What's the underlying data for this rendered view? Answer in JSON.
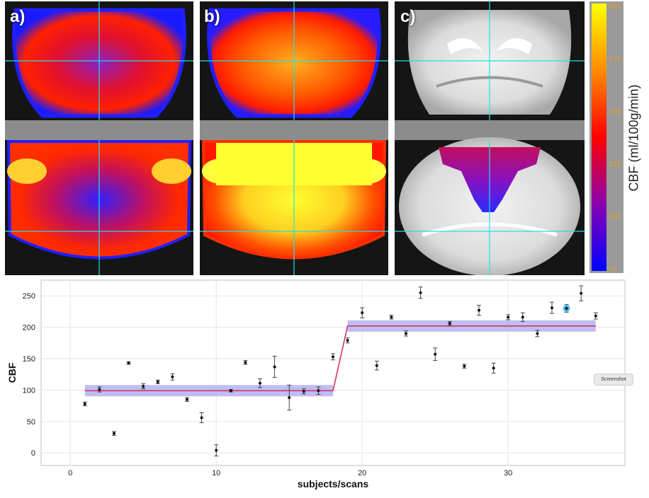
{
  "panels": [
    {
      "label": "a)",
      "mode": "perfusion_low"
    },
    {
      "label": "b)",
      "mode": "perfusion_high"
    },
    {
      "label": "c)",
      "mode": "anatomy_roi"
    }
  ],
  "colorbar": {
    "label": "CBF (ml/100g/min)",
    "ticks": [
      "75",
      "100",
      "125",
      "150",
      "175",
      "200"
    ],
    "colors": [
      "#0000ff",
      "#8a00b0",
      "#ff0000",
      "#ff8c00",
      "#ffff00"
    ]
  },
  "colors": {
    "fit_line": "#d6336c",
    "fit_band": "#b3b3f0",
    "crosshair": "#22e0e0",
    "highlight": "#38b8f0",
    "grid": "#e6e6e6"
  },
  "screenshot_button": "Screenshot",
  "chart_data": {
    "type": "scatter",
    "xlabel": "subjects/scans",
    "ylabel": "CBF",
    "xlim": [
      -2,
      38
    ],
    "ylim": [
      -20,
      275
    ],
    "xticks": [
      "0",
      "10",
      "20",
      "30"
    ],
    "yticks": [
      "0",
      "50",
      "100",
      "150",
      "200",
      "250"
    ],
    "grid": true,
    "points": [
      {
        "x": 1,
        "y": 78,
        "err": 3
      },
      {
        "x": 2,
        "y": 101,
        "err": 4
      },
      {
        "x": 3,
        "y": 31,
        "err": 3
      },
      {
        "x": 4,
        "y": 143,
        "err": 2
      },
      {
        "x": 5,
        "y": 106,
        "err": 4
      },
      {
        "x": 6,
        "y": 113,
        "err": 3
      },
      {
        "x": 7,
        "y": 121,
        "err": 5
      },
      {
        "x": 8,
        "y": 85,
        "err": 3
      },
      {
        "x": 9,
        "y": 56,
        "err": 8
      },
      {
        "x": 10,
        "y": 4,
        "err": 9
      },
      {
        "x": 11,
        "y": 99,
        "err": 2
      },
      {
        "x": 12,
        "y": 144,
        "err": 3
      },
      {
        "x": 13,
        "y": 111,
        "err": 7
      },
      {
        "x": 14,
        "y": 137,
        "err": 17
      },
      {
        "x": 15,
        "y": 88,
        "err": 20
      },
      {
        "x": 16,
        "y": 98,
        "err": 4
      },
      {
        "x": 17,
        "y": 99,
        "err": 6
      },
      {
        "x": 18,
        "y": 153,
        "err": 5
      },
      {
        "x": 19,
        "y": 179,
        "err": 4
      },
      {
        "x": 20,
        "y": 223,
        "err": 8
      },
      {
        "x": 21,
        "y": 139,
        "err": 7
      },
      {
        "x": 22,
        "y": 216,
        "err": 3
      },
      {
        "x": 23,
        "y": 190,
        "err": 4
      },
      {
        "x": 24,
        "y": 255,
        "err": 9
      },
      {
        "x": 25,
        "y": 157,
        "err": 10
      },
      {
        "x": 26,
        "y": 206,
        "err": 3
      },
      {
        "x": 27,
        "y": 138,
        "err": 3
      },
      {
        "x": 28,
        "y": 227,
        "err": 8
      },
      {
        "x": 29,
        "y": 135,
        "err": 8
      },
      {
        "x": 30,
        "y": 216,
        "err": 4
      },
      {
        "x": 31,
        "y": 216,
        "err": 7
      },
      {
        "x": 32,
        "y": 190,
        "err": 5
      },
      {
        "x": 33,
        "y": 231,
        "err": 9
      },
      {
        "x": 34,
        "y": 230,
        "err": 6,
        "highlight": true
      },
      {
        "x": 35,
        "y": 254,
        "err": 12
      },
      {
        "x": 36,
        "y": 218,
        "err": 5
      }
    ],
    "fit": {
      "segments": [
        {
          "x0": 1,
          "x1": 18,
          "y": 99
        },
        {
          "x0": 19,
          "x1": 36,
          "y": 202
        }
      ],
      "band_halfwidth": 9
    }
  }
}
